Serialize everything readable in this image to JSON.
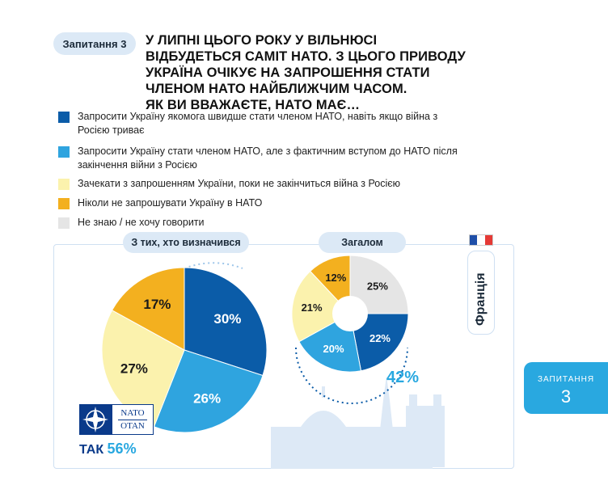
{
  "header": {
    "badge": "Запитання 3",
    "title_lines": [
      "У липні цього року у Вільнюсі",
      "відбудеться саміт НАТО. З цього приводу",
      "Україна очікує на запрошення стати",
      "членом НАТО найближчим часом.",
      "Як ви вважаєте, НАТО має…"
    ]
  },
  "legend": [
    {
      "text": "Запросити Україну якомога швидше стати членом НАТО, навіть якщо війна з Росією триває",
      "color": "#0b5ca8"
    },
    {
      "text": "Запросити Україну стати членом НАТО, але з фактичним вступом до НАТО після закінчення війни з Росією",
      "color": "#2fa4df"
    },
    {
      "text": "Зачекати з запрошенням України, поки не закінчиться війна з Росією",
      "color": "#fbf2ad"
    },
    {
      "text": "Ніколи не запрошувати Україну в НАТО",
      "color": "#f3b01f"
    },
    {
      "text": "Не знаю / не хочу говорити",
      "color": "#e5e5e5"
    }
  ],
  "panel": {
    "left_label": "З тих, хто визначився",
    "right_label": "Загалом",
    "country": "Франція",
    "total_yes_pct": "42%",
    "nato_word": "NATO",
    "otan_word": "OTAN",
    "tak_label": "ТАК",
    "tak_value": "56%"
  },
  "side_tab": {
    "label": "ЗАПИТАННЯ",
    "number": "3"
  },
  "chart_data": [
    {
      "type": "pie",
      "title": "З тих, хто визначився",
      "categories": [
        "Запросити якомога швидше",
        "Запросити з вступом після війни",
        "Зачекати",
        "Ніколи"
      ],
      "values": [
        30,
        26,
        27,
        17
      ],
      "colors": [
        "#0b5ca8",
        "#2fa4df",
        "#fbf2ad",
        "#f3b01f"
      ],
      "labels": [
        "30%",
        "26%",
        "27%",
        "17%"
      ]
    },
    {
      "type": "pie",
      "title": "Загалом",
      "categories": [
        "Не знаю",
        "Запросити якомога швидше",
        "Запросити з вступом після війни",
        "Зачекати",
        "Ніколи"
      ],
      "values": [
        25,
        22,
        20,
        21,
        12
      ],
      "colors": [
        "#e5e5e5",
        "#0b5ca8",
        "#2fa4df",
        "#fbf2ad",
        "#f3b01f"
      ],
      "labels": [
        "25%",
        "22%",
        "20%",
        "21%",
        "12%"
      ]
    }
  ]
}
